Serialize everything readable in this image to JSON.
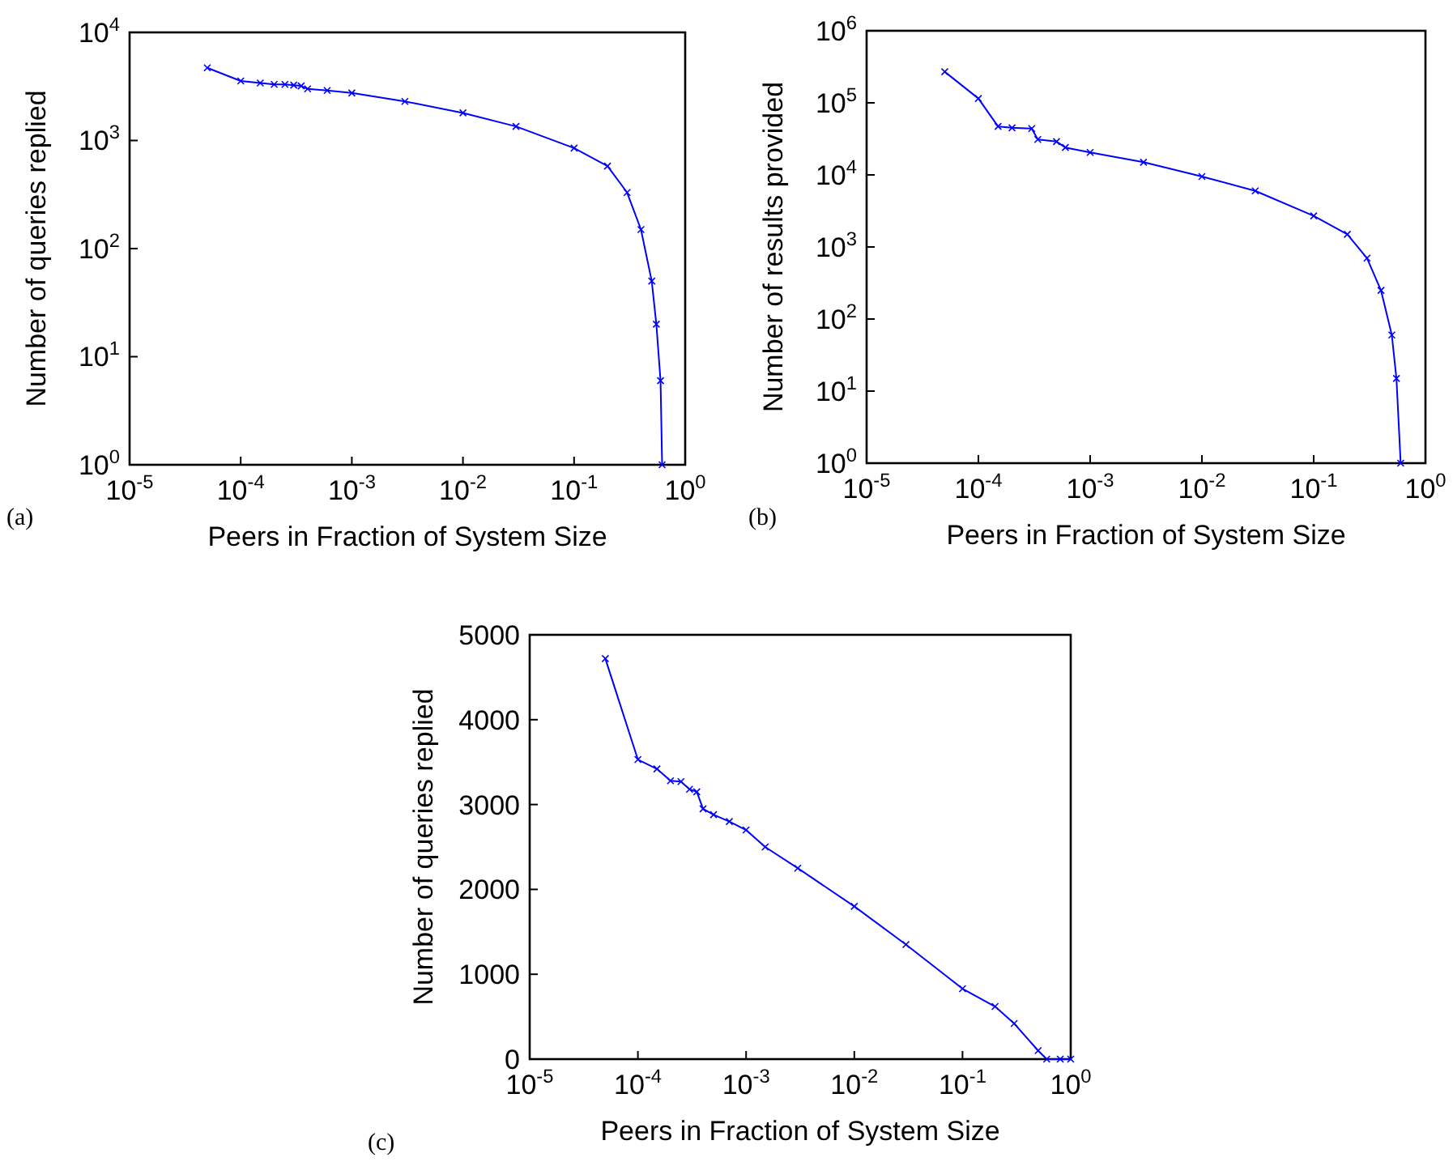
{
  "chart_data": [
    {
      "type": "line",
      "xlabel": "Peers in Fraction of System Size",
      "ylabel": "Number of queries replied",
      "annotations": [
        "(a)"
      ],
      "log": "xy",
      "marker": "cross",
      "line_style": "solid",
      "grid": false,
      "xlim": [
        1e-05,
        1
      ],
      "xticks": [
        {
          "value": 1e-05,
          "label": "10$^{-5}$"
        },
        {
          "value": 0.0001,
          "label": "10$^{-4}$"
        },
        {
          "value": 0.001,
          "label": "10$^{-3}$"
        },
        {
          "value": 0.01,
          "label": "10$^{-2}$"
        },
        {
          "value": 0.1,
          "label": "10$^{-1}$"
        },
        {
          "value": 1,
          "label": "10$^{0}$"
        }
      ],
      "ylim": [
        1,
        10000
      ],
      "yticks": [
        {
          "value": 1,
          "label": "10$^{0}$"
        },
        {
          "value": 10,
          "label": "10$^{1}$"
        },
        {
          "value": 100,
          "label": "10$^{2}$"
        },
        {
          "value": 1000,
          "label": "10$^{3}$"
        },
        {
          "value": 10000,
          "label": "10$^{4}$"
        }
      ],
      "series": [
        {
          "color": "#0000ff",
          "x": [
            5e-05,
            0.0001,
            0.00015,
            0.0002,
            0.00025,
            0.0003,
            0.00035,
            0.0004,
            0.0006,
            0.001,
            0.003,
            0.01,
            0.03,
            0.1,
            0.2,
            0.3,
            0.4,
            0.5,
            0.55,
            0.6,
            0.62
          ],
          "values": [
            4700,
            3550,
            3400,
            3300,
            3300,
            3250,
            3200,
            3000,
            2900,
            2750,
            2300,
            1800,
            1350,
            850,
            580,
            330,
            150,
            50,
            20,
            6,
            1
          ]
        }
      ]
    },
    {
      "type": "line",
      "xlabel": "Peers in Fraction of System Size",
      "ylabel": "Number of results provided",
      "annotations": [
        "(b)"
      ],
      "log": "xy",
      "marker": "cross",
      "line_style": "solid",
      "grid": false,
      "xlim": [
        1e-05,
        1
      ],
      "xticks": [
        {
          "value": 1e-05,
          "label": "10$^{-5}$"
        },
        {
          "value": 0.0001,
          "label": "10$^{-4}$"
        },
        {
          "value": 0.001,
          "label": "10$^{-3}$"
        },
        {
          "value": 0.01,
          "label": "10$^{-2}$"
        },
        {
          "value": 0.1,
          "label": "10$^{-1}$"
        },
        {
          "value": 1,
          "label": "10$^{0}$"
        }
      ],
      "ylim": [
        1,
        1000000
      ],
      "yticks": [
        {
          "value": 1,
          "label": "10$^{0}$"
        },
        {
          "value": 10,
          "label": "10$^{1}$"
        },
        {
          "value": 100,
          "label": "10$^{2}$"
        },
        {
          "value": 1000,
          "label": "10$^{3}$"
        },
        {
          "value": 10000,
          "label": "10$^{4}$"
        },
        {
          "value": 100000,
          "label": "10$^{5}$"
        },
        {
          "value": 1000000,
          "label": "10$^{6}$"
        }
      ],
      "series": [
        {
          "color": "#0000ff",
          "x": [
            5e-05,
            0.0001,
            0.00015,
            0.0002,
            0.0003,
            0.00034,
            0.0005,
            0.0006,
            0.001,
            0.003,
            0.01,
            0.03,
            0.1,
            0.2,
            0.3,
            0.4,
            0.5,
            0.55,
            0.6
          ],
          "values": [
            270000,
            115000,
            47000,
            45000,
            44000,
            31000,
            29000,
            24000,
            20500,
            15000,
            9500,
            6000,
            2700,
            1500,
            700,
            250,
            60,
            15,
            1
          ]
        }
      ]
    },
    {
      "type": "line",
      "xlabel": "Peers in Fraction of System Size",
      "ylabel": "Number of queries replied",
      "annotations": [
        "(c)"
      ],
      "log": "x",
      "marker": "cross",
      "line_style": "solid",
      "grid": false,
      "xlim": [
        1e-05,
        1
      ],
      "xticks": [
        {
          "value": 1e-05,
          "label": "10$^{-5}$"
        },
        {
          "value": 0.0001,
          "label": "10$^{-4}$"
        },
        {
          "value": 0.001,
          "label": "10$^{-3}$"
        },
        {
          "value": 0.01,
          "label": "10$^{-2}$"
        },
        {
          "value": 0.1,
          "label": "10$^{-1}$"
        },
        {
          "value": 1,
          "label": "10$^{0}$"
        }
      ],
      "ylim": [
        0,
        5000
      ],
      "yticks": [
        0,
        1000,
        2000,
        3000,
        4000,
        5000
      ],
      "series": [
        {
          "color": "#0000ff",
          "x": [
            5e-05,
            0.0001,
            0.00015,
            0.0002,
            0.00025,
            0.0003,
            0.00035,
            0.0004,
            0.0005,
            0.0007,
            0.001,
            0.0015,
            0.003,
            0.01,
            0.03,
            0.1,
            0.2,
            0.3,
            0.5,
            0.6,
            0.8,
            1
          ],
          "values": [
            4720,
            3530,
            3420,
            3280,
            3270,
            3180,
            3150,
            2950,
            2880,
            2800,
            2700,
            2500,
            2250,
            1800,
            1350,
            830,
            620,
            420,
            100,
            0,
            0,
            0
          ]
        }
      ]
    }
  ]
}
